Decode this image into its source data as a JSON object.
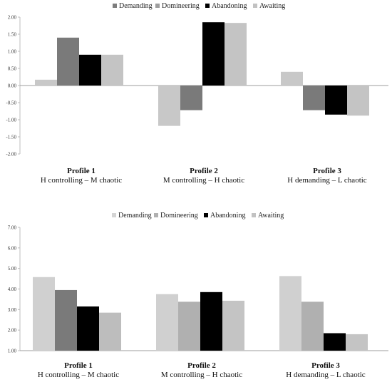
{
  "chart_data": [
    {
      "type": "bar",
      "categories": [
        "Profile 1",
        "Profile 2",
        "Profile 3"
      ],
      "category_descriptions": [
        "H controlling – M chaotic",
        "M controlling – H chaotic",
        "H demanding – L chaotic"
      ],
      "series": [
        {
          "name": "Demanding",
          "values": [
            0.17,
            -1.18,
            0.4
          ]
        },
        {
          "name": "Domineering",
          "values": [
            1.4,
            -0.72,
            -0.72
          ]
        },
        {
          "name": "Abandoning",
          "values": [
            0.9,
            1.85,
            -0.85
          ]
        },
        {
          "name": "Awaiting",
          "values": [
            0.9,
            1.83,
            -0.88
          ]
        }
      ],
      "legend_colors": [
        "#7d7d7d",
        "#9e9e9e",
        "#000000",
        "#c2c2c2"
      ],
      "bar_colors": [
        [
          "#c8c8c8",
          "#7a7a7a",
          "#000000",
          "#c4c4c4"
        ],
        [
          "#c8c8c8",
          "#7a7a7a",
          "#000000",
          "#c4c4c4"
        ],
        [
          "#c8c8c8",
          "#7a7a7a",
          "#000000",
          "#c4c4c4"
        ]
      ],
      "yticks": [
        "2.00",
        "1.50",
        "1.00",
        "0.50",
        "0.00",
        "-0.50",
        "-1.00",
        "-1.50",
        "-2.00"
      ],
      "ylim": [
        -2,
        2
      ],
      "legend_position": "top-center",
      "grid": false
    },
    {
      "type": "bar",
      "categories": [
        "Profile 1",
        "Profile 2",
        "Profile 3"
      ],
      "category_descriptions": [
        "H controlling – M chaotic",
        "M controlling – H chaotic",
        "H demanding – L chaotic"
      ],
      "series": [
        {
          "name": "Demanding",
          "values": [
            4.58,
            3.75,
            4.63
          ]
        },
        {
          "name": "Domineering",
          "values": [
            3.95,
            3.38,
            3.38
          ]
        },
        {
          "name": "Abandoning",
          "values": [
            3.15,
            3.85,
            1.85
          ]
        },
        {
          "name": "Awaiting",
          "values": [
            2.85,
            3.43,
            1.8
          ]
        }
      ],
      "legend_colors": [
        "#d4d4d4",
        "#b0b0b0",
        "#000000",
        "#c2c2c2"
      ],
      "bar_colors": [
        [
          "#d0d0d0",
          "#7a7a7a",
          "#000000",
          "#bdbdbd"
        ],
        [
          "#d0d0d0",
          "#b0b0b0",
          "#000000",
          "#c4c4c4"
        ],
        [
          "#d0d0d0",
          "#b0b0b0",
          "#000000",
          "#c4c4c4"
        ]
      ],
      "yticks": [
        "7.00",
        "6.00",
        "5.00",
        "4.00",
        "3.00",
        "2.00",
        "1.00"
      ],
      "ylim": [
        1,
        7
      ],
      "legend_position": "top-center",
      "grid": false
    }
  ]
}
